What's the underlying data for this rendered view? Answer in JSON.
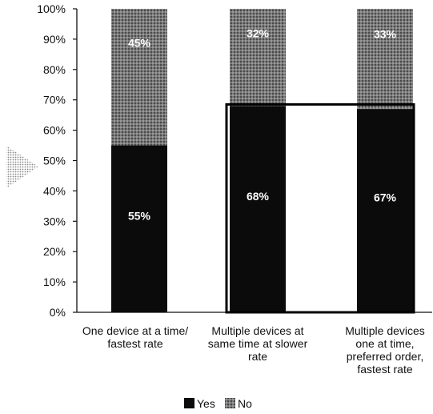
{
  "chart_data": {
    "type": "bar",
    "stacked": true,
    "percent_axis": true,
    "ylim": [
      0,
      100
    ],
    "yticks": [
      "0%",
      "10%",
      "20%",
      "30%",
      "40%",
      "50%",
      "60%",
      "70%",
      "80%",
      "90%",
      "100%"
    ],
    "categories": [
      [
        "One device at a time/",
        "fastest rate"
      ],
      [
        "Multiple devices at",
        "same time at slower",
        "rate"
      ],
      [
        "Multiple devices",
        "one at time,",
        "preferred order,",
        "fastest rate"
      ]
    ],
    "series": [
      {
        "name": "Yes",
        "values": [
          55,
          68,
          67
        ],
        "labels": [
          "55%",
          "68%",
          "67%"
        ],
        "color": "#0b0b0b"
      },
      {
        "name": "No",
        "values": [
          45,
          32,
          33
        ],
        "labels": [
          "45%",
          "32%",
          "33%"
        ],
        "color": "#6f6f6f"
      }
    ],
    "highlight": "box around categories 2 and 3",
    "legend": {
      "position": "bottom-center",
      "items": [
        "Yes",
        "No"
      ]
    },
    "grid": false,
    "decoration": "dotted arrow-head pointer left of axis"
  }
}
